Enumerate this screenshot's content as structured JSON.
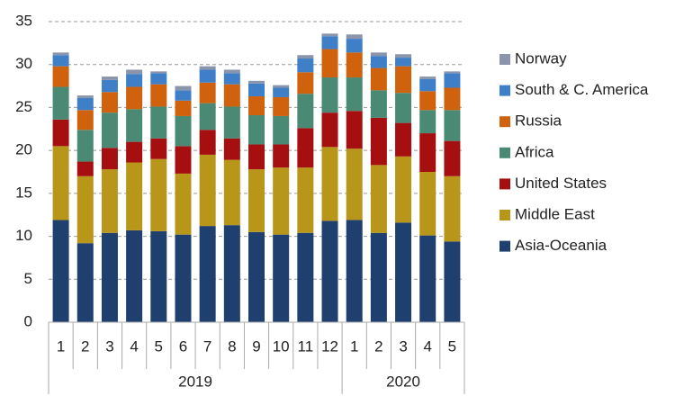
{
  "chart_data": {
    "type": "stacked-bar",
    "categories": [
      "1",
      "2",
      "3",
      "4",
      "5",
      "6",
      "7",
      "8",
      "9",
      "10",
      "11",
      "12",
      "1",
      "2",
      "3",
      "4",
      "5"
    ],
    "x_groups": [
      "2019",
      "2020"
    ],
    "series": [
      {
        "name": "Asia-Oceania",
        "color": "#1f3f6e",
        "values": [
          11.9,
          9.2,
          10.4,
          10.7,
          10.6,
          10.2,
          11.2,
          11.3,
          10.5,
          10.2,
          10.4,
          11.8,
          11.9,
          10.4,
          11.6,
          10.1,
          9.4
        ]
      },
      {
        "name": "Middle East",
        "color": "#b8961a",
        "values": [
          8.6,
          7.8,
          7.4,
          7.9,
          8.4,
          7.1,
          8.3,
          7.6,
          7.3,
          7.8,
          7.6,
          8.6,
          8.3,
          7.9,
          7.7,
          7.4,
          7.6
        ]
      },
      {
        "name": "United States",
        "color": "#a50f0f",
        "values": [
          3.1,
          1.7,
          2.5,
          2.4,
          2.4,
          3.2,
          2.9,
          2.5,
          2.9,
          2.7,
          4.6,
          4.0,
          4.4,
          5.5,
          3.9,
          4.5,
          4.1
        ]
      },
      {
        "name": "Africa",
        "color": "#4a8a74",
        "values": [
          3.8,
          3.7,
          4.1,
          3.8,
          3.7,
          3.5,
          3.1,
          3.7,
          3.4,
          3.3,
          4.0,
          4.1,
          3.9,
          3.2,
          3.5,
          2.7,
          3.6
        ]
      },
      {
        "name": "Russia",
        "color": "#d0620e",
        "values": [
          2.4,
          2.3,
          2.4,
          2.6,
          2.6,
          1.8,
          2.4,
          2.6,
          2.2,
          2.2,
          2.5,
          3.3,
          2.9,
          2.6,
          3.1,
          2.2,
          2.6
        ]
      },
      {
        "name": "South & C. America",
        "color": "#3f7fc8",
        "values": [
          1.3,
          1.4,
          1.4,
          1.5,
          1.3,
          1.2,
          1.5,
          1.3,
          1.5,
          1.1,
          1.6,
          1.5,
          1.6,
          1.4,
          1.0,
          1.4,
          1.7
        ]
      },
      {
        "name": "Norway",
        "color": "#8a94aa",
        "values": [
          0.3,
          0.3,
          0.4,
          0.5,
          0.2,
          0.5,
          0.4,
          0.4,
          0.3,
          0.3,
          0.4,
          0.3,
          0.5,
          0.4,
          0.4,
          0.3,
          0.2
        ]
      }
    ],
    "ylim": [
      0,
      35
    ],
    "yticks": [
      0,
      5,
      10,
      15,
      20,
      25,
      30,
      35
    ],
    "grid": true,
    "legend": "right"
  }
}
